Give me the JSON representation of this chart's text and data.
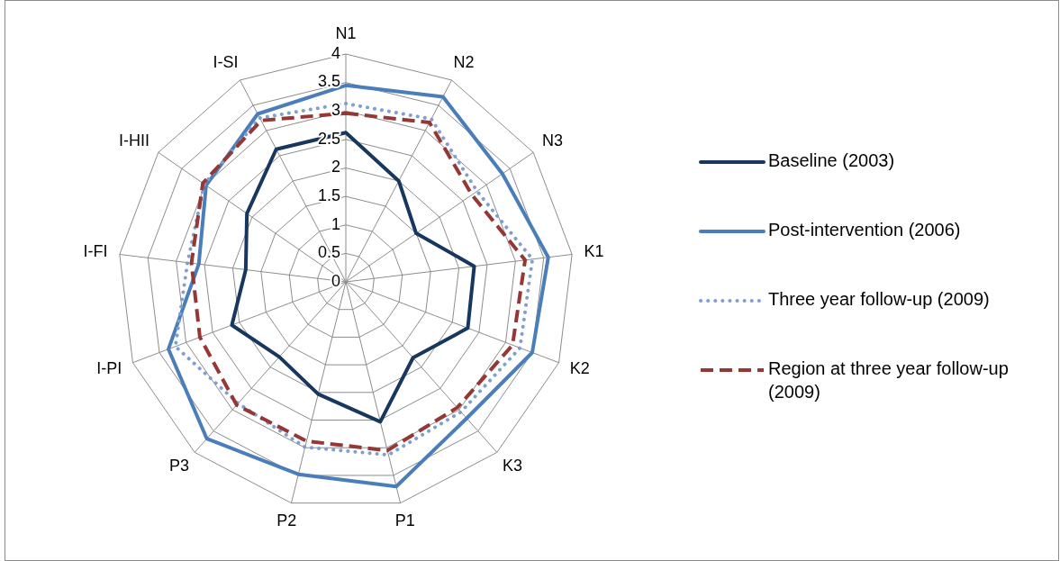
{
  "chart_data": {
    "type": "radar",
    "categories": [
      "N1",
      "N2",
      "N3",
      "K1",
      "K2",
      "K3",
      "P1",
      "P2",
      "P3",
      "I-PI",
      "I-FI",
      "I-HII",
      "I-SI"
    ],
    "ylim": [
      0,
      4
    ],
    "yticks": [
      0,
      0.5,
      1,
      1.5,
      2,
      2.5,
      3,
      3.5,
      4
    ],
    "grid": true,
    "legend": "right",
    "marker": "none",
    "series": [
      {
        "name": "Baseline (2003)",
        "color": "#17375e",
        "line_style": "solid",
        "values": [
          2.62,
          2.0,
          1.5,
          2.27,
          2.29,
          1.78,
          2.53,
          2.03,
          1.76,
          2.14,
          1.77,
          2.11,
          2.63
        ]
      },
      {
        "name": "Post-intervention (2006)",
        "color": "#4a7ebb",
        "line_style": "solid",
        "values": [
          3.45,
          3.67,
          3.34,
          3.58,
          3.5,
          3.2,
          3.7,
          3.48,
          3.68,
          3.33,
          2.6,
          2.98,
          3.33
        ]
      },
      {
        "name": "Three year follow-up (2009)",
        "color": "#7f9fd0",
        "line_style": "dotted",
        "values": [
          3.13,
          3.23,
          2.8,
          3.3,
          3.27,
          3.05,
          3.13,
          2.99,
          2.85,
          3.2,
          2.8,
          3.02,
          3.25
        ]
      },
      {
        "name": "Region at three year follow-up (2009)",
        "color": "#953735",
        "line_style": "dashed",
        "values": [
          2.96,
          3.16,
          2.69,
          3.17,
          3.13,
          2.95,
          3.05,
          2.88,
          2.89,
          2.74,
          2.73,
          3.05,
          3.2
        ]
      }
    ]
  }
}
